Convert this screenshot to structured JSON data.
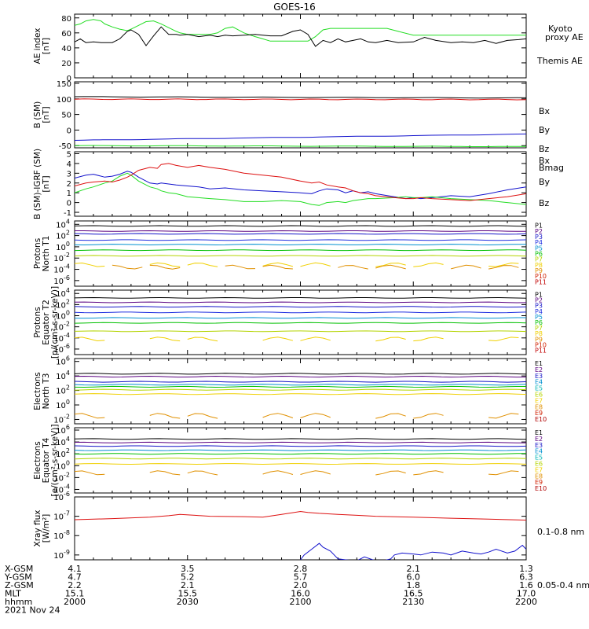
{
  "title": "GOES-16",
  "colors": {
    "p": [
      "#000000",
      "#5a0080",
      "#1414c8",
      "#2030e0",
      "#0090d0",
      "#00b4b4",
      "#00c000",
      "#b4d400",
      "#f0d000",
      "#e09000",
      "#d02000",
      "#c00000"
    ],
    "e": [
      "#000000",
      "#5a0080",
      "#1414c8",
      "#0090d0",
      "#00b4b4",
      "#00c000",
      "#b4d400",
      "#f0d000",
      "#e09000",
      "#d02000",
      "#b00000"
    ],
    "green": "#22dd22",
    "red": "#dd1111",
    "blue": "#1111cc",
    "black": "#000000"
  },
  "chart_data": [
    {
      "type": "line",
      "id": "ae",
      "ylabel": [
        "AE index",
        "[nT]"
      ],
      "yticks": [
        "0",
        "20",
        "40",
        "60",
        "80"
      ],
      "ylim": [
        0,
        85
      ],
      "x": [
        0,
        1.5,
        3,
        5,
        7,
        8,
        10,
        12,
        14,
        15,
        17,
        19,
        21,
        23,
        25,
        27,
        28,
        30,
        33,
        36,
        38,
        40,
        42,
        45,
        48,
        50,
        52,
        55,
        58,
        60,
        62,
        64,
        66,
        68,
        70,
        72,
        74,
        76,
        78,
        80,
        83,
        86,
        90,
        93,
        96,
        100,
        103,
        106,
        109,
        112,
        115,
        118,
        120
      ],
      "series": [
        {
          "name": "Kyoto proxy AE",
          "legend": [
            "Kyoto",
            "proxy AE"
          ],
          "color": "#22dd22",
          "values": [
            70,
            72,
            76,
            78,
            76,
            72,
            68,
            65,
            63,
            65,
            70,
            75,
            76,
            72,
            67,
            62,
            60,
            58,
            58,
            58,
            60,
            66,
            68,
            60,
            55,
            52,
            49,
            49,
            49,
            49,
            49,
            55,
            64,
            66,
            66,
            66,
            66,
            66,
            66,
            66,
            66,
            62,
            57,
            57,
            57,
            57,
            57,
            57,
            57,
            57,
            57,
            57,
            57
          ]
        },
        {
          "name": "Themis AE",
          "color": "#000000",
          "values": [
            48,
            52,
            47,
            48,
            47,
            47,
            47,
            52,
            62,
            64,
            58,
            43,
            56,
            68,
            58,
            58,
            57,
            58,
            55,
            57,
            55,
            57,
            56,
            57,
            58,
            57,
            56,
            56,
            62,
            64,
            58,
            42,
            50,
            47,
            52,
            48,
            50,
            52,
            48,
            47,
            50,
            47,
            48,
            54,
            50,
            47,
            48,
            47,
            50,
            46,
            50,
            51,
            52
          ]
        }
      ]
    },
    {
      "type": "line",
      "id": "bsm",
      "ylabel": [
        "B (SM)",
        "[nT]"
      ],
      "yticks": [
        "-50",
        "0",
        "50",
        "100",
        "150"
      ],
      "ylim": [
        -57,
        155
      ],
      "series": [
        {
          "name": "Bx",
          "color": "#1111cc",
          "start": -33,
          "end": -13
        },
        {
          "name": "By",
          "color": "#22dd22",
          "start": -50,
          "end": -53
        },
        {
          "name": "Bz",
          "color": "#dd1111",
          "start": 99,
          "end": 98
        },
        {
          "name": "Bmag",
          "color": "#000000",
          "start": 107,
          "end": 103
        }
      ]
    },
    {
      "type": "line",
      "id": "bdiff",
      "ylabel": [
        "B (SM)-IGRF (SM)",
        "[nT]"
      ],
      "yticks": [
        "-1",
        "0",
        "1",
        "2",
        "3",
        "4",
        "5"
      ],
      "ylim": [
        -1.4,
        5.2
      ],
      "x": [
        0,
        3,
        5,
        8,
        10,
        12,
        14,
        15,
        17,
        20,
        22,
        23,
        25,
        27,
        30,
        33,
        36,
        40,
        45,
        50,
        55,
        60,
        63,
        65,
        67,
        70,
        72,
        74,
        76,
        78,
        80,
        85,
        88,
        90,
        92,
        95,
        100,
        105,
        110,
        115,
        120
      ],
      "series": [
        {
          "name": "Bx",
          "color": "#1111cc",
          "values": [
            2.5,
            2.8,
            2.9,
            2.6,
            2.7,
            2.9,
            3.2,
            3.1,
            2.6,
            2.0,
            1.9,
            2.0,
            1.9,
            1.8,
            1.7,
            1.6,
            1.4,
            1.5,
            1.3,
            1.2,
            1.1,
            1.0,
            0.9,
            1.2,
            1.4,
            1.3,
            1.0,
            1.2,
            1.0,
            1.1,
            0.9,
            0.6,
            0.4,
            0.5,
            0.4,
            0.5,
            0.7,
            0.6,
            0.9,
            1.3,
            1.6
          ]
        },
        {
          "name": "By",
          "color": "#22dd22",
          "values": [
            1.0,
            1.4,
            1.6,
            2.0,
            2.2,
            2.7,
            3.0,
            2.8,
            2.2,
            1.6,
            1.4,
            1.2,
            1.0,
            0.9,
            0.6,
            0.5,
            0.4,
            0.3,
            0.1,
            0.1,
            0.2,
            0.1,
            -0.2,
            -0.3,
            0.0,
            0.1,
            0.0,
            0.2,
            0.3,
            0.4,
            0.4,
            0.5,
            0.6,
            0.5,
            0.5,
            0.6,
            0.4,
            0.3,
            0.2,
            0.0,
            -0.2
          ]
        },
        {
          "name": "Bz",
          "color": "#dd1111",
          "values": [
            1.7,
            2.0,
            2.1,
            2.2,
            2.1,
            2.3,
            2.6,
            2.8,
            3.3,
            3.6,
            3.5,
            3.9,
            4.0,
            3.8,
            3.6,
            3.8,
            3.6,
            3.4,
            3.0,
            2.8,
            2.6,
            2.2,
            2.0,
            2.1,
            1.8,
            1.6,
            1.5,
            1.2,
            1.0,
            0.9,
            0.7,
            0.5,
            0.4,
            0.4,
            0.5,
            0.4,
            0.3,
            0.2,
            0.4,
            0.6,
            0.9
          ]
        }
      ]
    },
    {
      "type": "line",
      "id": "p_t1",
      "log": true,
      "ylabel": [
        "Protons",
        "North T1"
      ],
      "yticks": [
        {
          "b": "10",
          "e": "4"
        },
        {
          "b": "10",
          "e": "2"
        },
        {
          "b": "10",
          "e": "0"
        },
        {
          "b": "10",
          "e": "-2"
        },
        {
          "b": "10",
          "e": "-4"
        },
        {
          "b": "10",
          "e": "-6"
        }
      ],
      "ylim_exp": [
        -7,
        4.6
      ],
      "legend": [
        "P1",
        "P2",
        "P3",
        "P4",
        "P5",
        "P6",
        "P7",
        "P8",
        "P9",
        "P10",
        "P11"
      ],
      "levels_exp": [
        3.7,
        2.8,
        2.3,
        1.2,
        0.4,
        -0.6,
        -1.6,
        -3.2,
        -3.6
      ]
    },
    {
      "type": "line",
      "id": "p_t2",
      "log": true,
      "ylabel": [
        "Protons",
        "Equator T2",
        "[p/(cm²-s-sr-keV)]"
      ],
      "yticks": [
        {
          "b": "10",
          "e": "4"
        },
        {
          "b": "10",
          "e": "2"
        },
        {
          "b": "10",
          "e": "0"
        },
        {
          "b": "10",
          "e": "-2"
        },
        {
          "b": "10",
          "e": "-4"
        },
        {
          "b": "10",
          "e": "-6"
        }
      ],
      "ylim_exp": [
        -7,
        4.6
      ],
      "legend": [
        "P1",
        "P2",
        "P3",
        "P4",
        "P5",
        "P6",
        "P7",
        "P8",
        "P9",
        "P10",
        "P11"
      ],
      "levels_exp": [
        3.2,
        2.4,
        1.6,
        0.6,
        -0.4,
        -1.3,
        -2.8,
        -4.2
      ]
    },
    {
      "type": "line",
      "id": "e_t3",
      "log": true,
      "ylabel": [
        "Electrons",
        "North T3"
      ],
      "yticks": [
        {
          "b": "10",
          "e": "6"
        },
        {
          "b": "10",
          "e": "4"
        },
        {
          "b": "10",
          "e": "2"
        },
        {
          "b": "10",
          "e": "0"
        },
        {
          "b": "10",
          "e": "-2"
        }
      ],
      "ylim_exp": [
        -2.6,
        6.4
      ],
      "legend": [
        "E1",
        "E2",
        "E3",
        "E4",
        "E5",
        "E6",
        "E7",
        "E8",
        "E9",
        "E10"
      ],
      "levels_exp": [
        4.3,
        3.9,
        3.2,
        2.8,
        2.5,
        2.1,
        1.5,
        -1.5
      ]
    },
    {
      "type": "line",
      "id": "e_t4",
      "log": true,
      "ylabel": [
        "Electrons",
        "Equator T4",
        "[e/(cm²-s-sr-keV)]"
      ],
      "yticks": [
        {
          "b": "10",
          "e": "6"
        },
        {
          "b": "10",
          "e": "4"
        },
        {
          "b": "10",
          "e": "2"
        },
        {
          "b": "10",
          "e": "0"
        },
        {
          "b": "10",
          "e": "-2"
        },
        {
          "b": "10",
          "e": "-4"
        }
      ],
      "ylim_exp": [
        -4.6,
        6.4
      ],
      "legend": [
        "E1",
        "E2",
        "E3",
        "E4",
        "E5",
        "E6",
        "E7",
        "E8",
        "E9",
        "E10"
      ],
      "levels_exp": [
        4.5,
        3.9,
        3.3,
        2.6,
        2.0,
        1.2,
        0.3,
        -1.2
      ]
    },
    {
      "type": "line",
      "id": "xray",
      "log": true,
      "ylabel": [
        "Xray flux",
        "[W/m²]"
      ],
      "yticks": [
        {
          "b": "10",
          "e": "-6"
        },
        {
          "b": "10",
          "e": "-7"
        },
        {
          "b": "10",
          "e": "-8"
        },
        {
          "b": "10",
          "e": "-9"
        }
      ],
      "ylim_exp": [
        -9.25,
        -6
      ],
      "series": [
        {
          "name": "0.1-0.8 nm",
          "color": "#dd1111",
          "x": [
            0,
            10,
            20,
            25,
            28,
            32,
            36,
            45,
            50,
            55,
            60,
            62,
            65,
            70,
            75,
            80,
            90,
            100,
            110,
            120
          ],
          "values_exp": [
            -7.18,
            -7.12,
            -7.05,
            -6.97,
            -6.9,
            -6.95,
            -7.0,
            -7.02,
            -7.05,
            -6.9,
            -6.75,
            -6.8,
            -6.85,
            -6.9,
            -6.95,
            -7.0,
            -7.05,
            -7.1,
            -7.15,
            -7.2
          ]
        },
        {
          "name": "0.05-0.4 nm",
          "color": "#1111cc",
          "x": [
            60,
            61,
            63,
            65,
            66,
            68,
            70,
            72,
            75,
            77,
            80,
            82,
            84,
            85,
            87,
            90,
            92,
            95,
            98,
            100,
            103,
            106,
            108,
            110,
            112,
            115,
            117,
            119,
            120
          ],
          "values_exp": [
            -9.25,
            -9.0,
            -8.7,
            -8.4,
            -8.6,
            -8.8,
            -9.2,
            -9.25,
            -9.3,
            -9.1,
            -9.3,
            -9.3,
            -9.2,
            -9.0,
            -8.9,
            -8.95,
            -9.0,
            -8.85,
            -8.9,
            -9.0,
            -8.8,
            -8.9,
            -8.95,
            -8.85,
            -8.7,
            -8.9,
            -8.8,
            -8.5,
            -8.7
          ]
        }
      ]
    }
  ],
  "axis": {
    "rows": [
      {
        "label": "X-GSM",
        "values": [
          "4.1",
          "3.5",
          "2.8",
          "2.1",
          "1.3"
        ]
      },
      {
        "label": "Y-GSM",
        "values": [
          "4.7",
          "5.2",
          "5.7",
          "6.0",
          "6.3"
        ]
      },
      {
        "label": "Z-GSM",
        "values": [
          "2.2",
          "2.1",
          "2.0",
          "1.8",
          "1.6"
        ]
      },
      {
        "label": "MLT",
        "values": [
          "15.1",
          "15.5",
          "16.0",
          "16.5",
          "17.0"
        ]
      },
      {
        "label": "hhmm",
        "values": [
          "2000",
          "2030",
          "2100",
          "2130",
          "2200"
        ]
      }
    ],
    "date": "2021 Nov 24"
  }
}
